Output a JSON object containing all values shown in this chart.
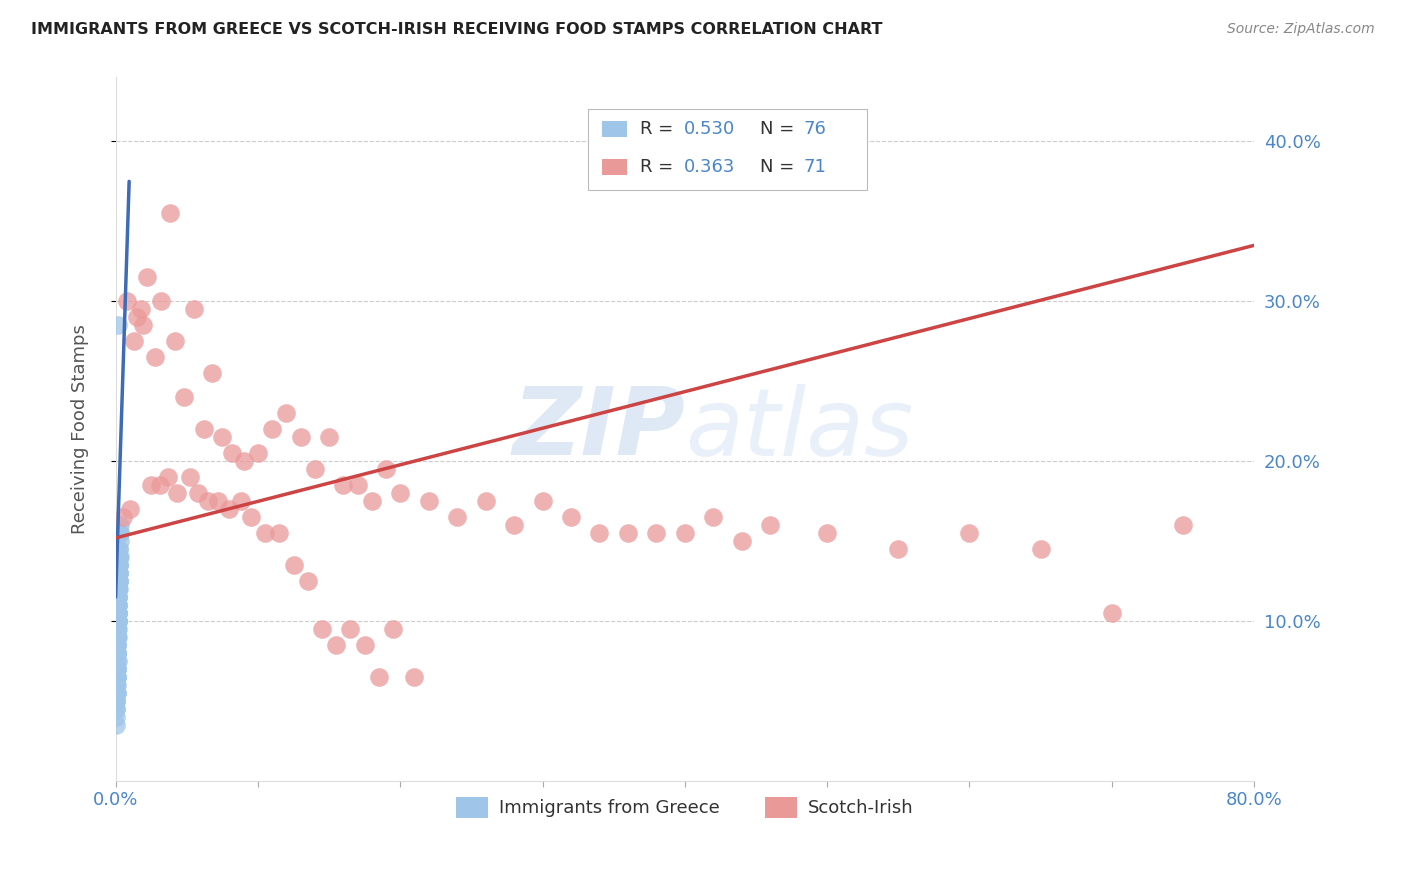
{
  "title": "IMMIGRANTS FROM GREECE VS SCOTCH-IRISH RECEIVING FOOD STAMPS CORRELATION CHART",
  "source": "Source: ZipAtlas.com",
  "ylabel": "Receiving Food Stamps",
  "x_min": 0.0,
  "x_max": 0.8,
  "y_min": 0.0,
  "y_max": 0.44,
  "legend1_r": "R = 0.530",
  "legend1_n": "N = 76",
  "legend2_r": "R = 0.363",
  "legend2_n": "N = 71",
  "watermark": "ZIPatlas",
  "legend_color1": "#9fc5e8",
  "legend_color2": "#ea9999",
  "trendline1_color": "#3d6bb5",
  "trendline2_color": "#cc4444",
  "scatter1_color": "#9fc5e8",
  "scatter2_color": "#ea9999",
  "axis_color": "#4a86c8",
  "grid_color": "#cccccc",
  "background_color": "#ffffff",
  "r_n_color": "#4a86c8",
  "title_color": "#222222",
  "source_color": "#888888",
  "ylabel_color": "#555555",
  "greece_x": [
    0.0005,
    0.001,
    0.0008,
    0.0012,
    0.0006,
    0.0003,
    0.0015,
    0.002,
    0.0025,
    0.0018,
    0.001,
    0.0007,
    0.0004,
    0.0009,
    0.0013,
    0.0017,
    0.0022,
    0.0028,
    0.0005,
    0.0011,
    0.0016,
    0.0021,
    0.0003,
    0.0008,
    0.0014,
    0.002,
    0.0026,
    0.0006,
    0.001,
    0.0015,
    0.002,
    0.0004,
    0.0012,
    0.0018,
    0.0024,
    0.003,
    0.0007,
    0.0013,
    0.0019,
    0.0025,
    0.0002,
    0.0009,
    0.0016,
    0.0023,
    0.003,
    0.0005,
    0.001,
    0.0015,
    0.002,
    0.0025,
    0.0003,
    0.0008,
    0.0013,
    0.0018,
    0.0023,
    0.0028,
    0.0006,
    0.0011,
    0.0017,
    0.0022,
    0.0027,
    0.0004,
    0.001,
    0.0016,
    0.0021,
    0.0026,
    0.0007,
    0.0012,
    0.0019,
    0.0024,
    0.0029,
    0.0005,
    0.0014,
    0.002,
    0.0009,
    0.0016
  ],
  "greece_y": [
    0.065,
    0.08,
    0.055,
    0.09,
    0.07,
    0.045,
    0.1,
    0.115,
    0.13,
    0.075,
    0.085,
    0.06,
    0.05,
    0.055,
    0.095,
    0.105,
    0.12,
    0.14,
    0.07,
    0.08,
    0.11,
    0.125,
    0.04,
    0.065,
    0.09,
    0.115,
    0.135,
    0.06,
    0.075,
    0.105,
    0.12,
    0.05,
    0.085,
    0.1,
    0.13,
    0.155,
    0.065,
    0.095,
    0.11,
    0.14,
    0.035,
    0.07,
    0.1,
    0.125,
    0.16,
    0.06,
    0.08,
    0.105,
    0.12,
    0.14,
    0.045,
    0.07,
    0.09,
    0.115,
    0.135,
    0.155,
    0.055,
    0.085,
    0.105,
    0.13,
    0.145,
    0.05,
    0.08,
    0.1,
    0.125,
    0.145,
    0.065,
    0.09,
    0.11,
    0.135,
    0.15,
    0.055,
    0.095,
    0.12,
    0.07,
    0.285
  ],
  "scotch_x": [
    0.005,
    0.01,
    0.015,
    0.018,
    0.022,
    0.028,
    0.032,
    0.038,
    0.042,
    0.048,
    0.055,
    0.062,
    0.068,
    0.075,
    0.082,
    0.09,
    0.1,
    0.11,
    0.12,
    0.13,
    0.14,
    0.15,
    0.16,
    0.17,
    0.18,
    0.19,
    0.2,
    0.22,
    0.24,
    0.26,
    0.28,
    0.3,
    0.32,
    0.34,
    0.36,
    0.38,
    0.4,
    0.42,
    0.44,
    0.46,
    0.5,
    0.55,
    0.6,
    0.65,
    0.7,
    0.75,
    0.008,
    0.013,
    0.019,
    0.025,
    0.031,
    0.037,
    0.043,
    0.052,
    0.058,
    0.065,
    0.072,
    0.08,
    0.088,
    0.095,
    0.105,
    0.115,
    0.125,
    0.135,
    0.145,
    0.155,
    0.165,
    0.175,
    0.185,
    0.195,
    0.21
  ],
  "scotch_y": [
    0.165,
    0.17,
    0.29,
    0.295,
    0.315,
    0.265,
    0.3,
    0.355,
    0.275,
    0.24,
    0.295,
    0.22,
    0.255,
    0.215,
    0.205,
    0.2,
    0.205,
    0.22,
    0.23,
    0.215,
    0.195,
    0.215,
    0.185,
    0.185,
    0.175,
    0.195,
    0.18,
    0.175,
    0.165,
    0.175,
    0.16,
    0.175,
    0.165,
    0.155,
    0.155,
    0.155,
    0.155,
    0.165,
    0.15,
    0.16,
    0.155,
    0.145,
    0.155,
    0.145,
    0.105,
    0.16,
    0.3,
    0.275,
    0.285,
    0.185,
    0.185,
    0.19,
    0.18,
    0.19,
    0.18,
    0.175,
    0.175,
    0.17,
    0.175,
    0.165,
    0.155,
    0.155,
    0.135,
    0.125,
    0.095,
    0.085,
    0.095,
    0.085,
    0.065,
    0.095,
    0.065
  ],
  "trendline1_x": [
    0.0,
    0.0095
  ],
  "trendline1_y": [
    0.115,
    0.375
  ],
  "trendline2_x": [
    0.0,
    0.8
  ],
  "trendline2_y": [
    0.152,
    0.335
  ]
}
